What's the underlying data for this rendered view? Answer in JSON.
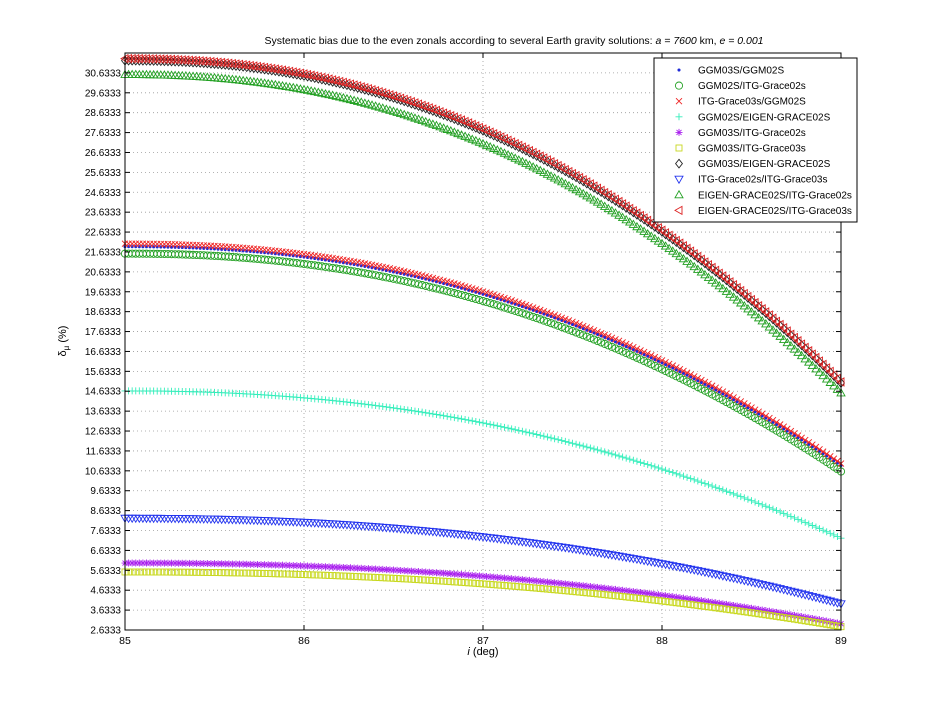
{
  "chart_data": {
    "type": "scatter",
    "title_main": "Systematic bias due to the even zonals according to several Earth gravity solutions: ",
    "title_a": "a = 7600",
    "title_km": "  km,  ",
    "title_e": "e = 0.001",
    "xlabel_var": "i",
    "xlabel_unit": " (deg)",
    "ylabel_symbol": "δ",
    "ylabel_sub": "μ",
    "ylabel_unit": " (%)",
    "xlim": [
      85,
      89
    ],
    "ylim": [
      2.6333,
      31.6333
    ],
    "xticks": [
      85,
      86,
      87,
      88,
      89
    ],
    "yticks": [
      2.6333,
      3.6333,
      4.6333,
      5.6333,
      6.6333,
      7.6333,
      8.6333,
      9.6333,
      10.6333,
      11.6333,
      12.6333,
      13.6333,
      14.6333,
      15.6333,
      16.6333,
      17.6333,
      18.6333,
      19.6333,
      20.6333,
      21.6333,
      22.6333,
      23.6333,
      24.6333,
      25.6333,
      26.6333,
      27.6333,
      28.6333,
      29.6333,
      30.6333
    ],
    "grid": true,
    "legend_position": "top-right",
    "series": [
      {
        "name": "GGM03S/GGM02S",
        "marker": "dot",
        "color": "#1f2ad6",
        "start": 21.9,
        "end": 10.9
      },
      {
        "name": "GGM02S/ITG-Grace02s",
        "marker": "circle",
        "color": "#22a022",
        "start": 21.55,
        "end": 10.6
      },
      {
        "name": "ITG-Grace03s/GGM02S",
        "marker": "x",
        "color": "#ee2222",
        "start": 22.05,
        "end": 11.0
      },
      {
        "name": "GGM02S/EIGEN-GRACE02S",
        "marker": "plus",
        "color": "#33eebb",
        "start": 14.65,
        "end": 7.25
      },
      {
        "name": "GGM03S/ITG-Grace02s",
        "marker": "star",
        "color": "#aa22ee",
        "start": 6.0,
        "end": 2.95
      },
      {
        "name": "GGM03S/ITG-Grace03s",
        "marker": "square",
        "color": "#c8d81e",
        "start": 5.55,
        "end": 2.8
      },
      {
        "name": "GGM03S/EIGEN-GRACE02S",
        "marker": "diamond",
        "color": "#222222",
        "start": 31.25,
        "end": 15.05
      },
      {
        "name": "ITG-Grace02s/ITG-Grace03s",
        "marker": "triangle-down",
        "color": "#2233ee",
        "start": 8.25,
        "end": 3.95
      },
      {
        "name": "EIGEN-GRACE02S/ITG-Grace02s",
        "marker": "triangle-up",
        "color": "#22a022",
        "start": 30.55,
        "end": 14.55
      },
      {
        "name": "EIGEN-GRACE02S/ITG-Grace03s",
        "marker": "triangle-left",
        "color": "#dd2222",
        "start": 31.35,
        "end": 15.1
      }
    ]
  }
}
